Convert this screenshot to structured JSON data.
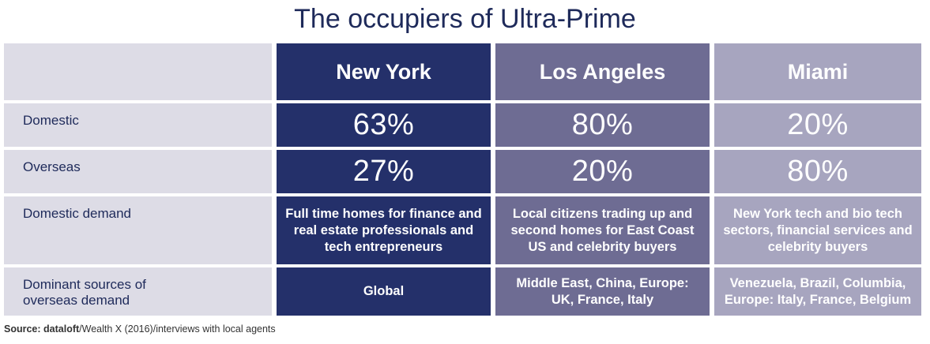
{
  "chart_data": {
    "type": "table",
    "title": "The occupiers of Ultra-Prime",
    "columns": [
      "New York",
      "Los Angeles",
      "Miami"
    ],
    "rows": [
      {
        "label": "Domestic",
        "values": [
          "63%",
          "80%",
          "20%"
        ]
      },
      {
        "label": "Overseas",
        "values": [
          "27%",
          "20%",
          "80%"
        ]
      },
      {
        "label": "Domestic demand",
        "values": [
          "Full time homes for finance and real estate professionals and tech entrepreneurs",
          "Local citizens trading up and second homes for East Coast US and celebrity buyers",
          "New York tech and bio tech sectors, financial services and celebrity buyers"
        ]
      },
      {
        "label": "Dominant sources of overseas demand",
        "values": [
          "Global",
          "Middle East, China, Europe: UK, France, Italy",
          "Venezuela, Brazil, Columbia, Europe: Italy, France, Belgium"
        ]
      }
    ],
    "colors": {
      "New York": "#24306a",
      "Los Angeles": "#6e6c93",
      "Miami": "#a7a5bf",
      "label": "#dddce6",
      "text": "#1e2a5a"
    }
  },
  "source": {
    "prefix": "Source: ",
    "brand": "dataloft",
    "rest": "/Wealth X (2016)/interviews with local agents"
  }
}
